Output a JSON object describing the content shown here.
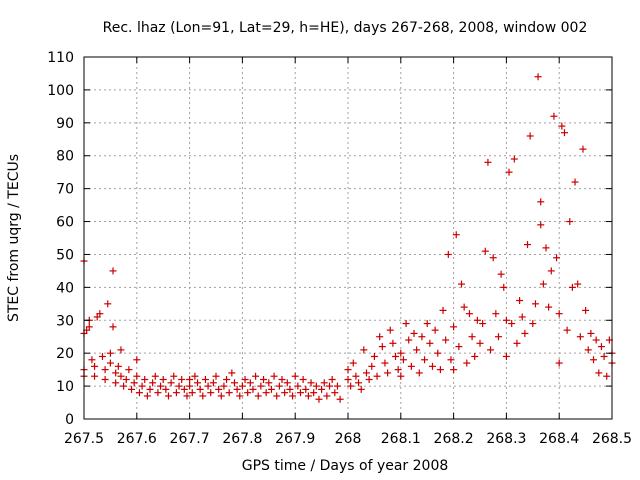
{
  "chart_data": {
    "type": "scatter",
    "title": "Rec. lhaz (Lon=91, Lat=29, h=HE), days 267-268, 2008, window 002",
    "xlabel": "GPS time / Days of year 2008",
    "ylabel": "STEC from uqrg / TECUs",
    "xlim": [
      267.5,
      268.5
    ],
    "ylim": [
      0,
      110
    ],
    "xticks": [
      267.5,
      267.6,
      267.7,
      267.8,
      267.9,
      268.0,
      268.1,
      268.2,
      268.3,
      268.4,
      268.5
    ],
    "xtick_labels": [
      "267.5",
      "267.6",
      "267.7",
      "267.8",
      "267.9",
      "268",
      "268.1",
      "268.2",
      "268.3",
      "268.4",
      "268.5"
    ],
    "yticks": [
      0,
      10,
      20,
      30,
      40,
      50,
      60,
      70,
      80,
      90,
      100,
      110
    ],
    "ytick_labels": [
      "0",
      "10",
      "20",
      "30",
      "40",
      "50",
      "60",
      "70",
      "80",
      "90",
      "100",
      "110"
    ],
    "grid": true,
    "marker": "+",
    "color": "#cc0000",
    "series": [
      {
        "points": [
          [
            267.5,
            48
          ],
          [
            267.5,
            26
          ],
          [
            267.5,
            15
          ],
          [
            267.5,
            13
          ],
          [
            267.505,
            27
          ],
          [
            267.51,
            30
          ],
          [
            267.51,
            28
          ],
          [
            267.515,
            18
          ],
          [
            267.52,
            16
          ],
          [
            267.52,
            13
          ],
          [
            267.525,
            31
          ],
          [
            267.53,
            32
          ],
          [
            267.535,
            19
          ],
          [
            267.54,
            15
          ],
          [
            267.54,
            12
          ],
          [
            267.545,
            35
          ],
          [
            267.55,
            20
          ],
          [
            267.55,
            17
          ],
          [
            267.555,
            45
          ],
          [
            267.555,
            28
          ],
          [
            267.56,
            14
          ],
          [
            267.56,
            11
          ],
          [
            267.565,
            16
          ],
          [
            267.57,
            21
          ],
          [
            267.57,
            13
          ],
          [
            267.575,
            10
          ],
          [
            267.58,
            12
          ],
          [
            267.585,
            15
          ],
          [
            267.59,
            9
          ],
          [
            267.595,
            11
          ],
          [
            267.6,
            18
          ],
          [
            267.6,
            13
          ],
          [
            267.605,
            8
          ],
          [
            267.61,
            10
          ],
          [
            267.615,
            12
          ],
          [
            267.62,
            7
          ],
          [
            267.625,
            9
          ],
          [
            267.63,
            11
          ],
          [
            267.635,
            13
          ],
          [
            267.64,
            8
          ],
          [
            267.645,
            10
          ],
          [
            267.65,
            12
          ],
          [
            267.655,
            9
          ],
          [
            267.66,
            7
          ],
          [
            267.665,
            11
          ],
          [
            267.67,
            13
          ],
          [
            267.675,
            8
          ],
          [
            267.68,
            10
          ],
          [
            267.685,
            12
          ],
          [
            267.69,
            9
          ],
          [
            267.695,
            7
          ],
          [
            267.7,
            12
          ],
          [
            267.7,
            10
          ],
          [
            267.705,
            8
          ],
          [
            267.71,
            13
          ],
          [
            267.715,
            11
          ],
          [
            267.72,
            9
          ],
          [
            267.725,
            7
          ],
          [
            267.73,
            12
          ],
          [
            267.735,
            10
          ],
          [
            267.74,
            8
          ],
          [
            267.745,
            11
          ],
          [
            267.75,
            13
          ],
          [
            267.755,
            9
          ],
          [
            267.76,
            7
          ],
          [
            267.765,
            10
          ],
          [
            267.77,
            12
          ],
          [
            267.775,
            8
          ],
          [
            267.78,
            14
          ],
          [
            267.785,
            11
          ],
          [
            267.79,
            9
          ],
          [
            267.795,
            7
          ],
          [
            267.8,
            10
          ],
          [
            267.805,
            12
          ],
          [
            267.81,
            8
          ],
          [
            267.815,
            11
          ],
          [
            267.82,
            9
          ],
          [
            267.825,
            13
          ],
          [
            267.83,
            7
          ],
          [
            267.835,
            10
          ],
          [
            267.84,
            12
          ],
          [
            267.845,
            8
          ],
          [
            267.85,
            11
          ],
          [
            267.855,
            9
          ],
          [
            267.86,
            13
          ],
          [
            267.865,
            7
          ],
          [
            267.87,
            10
          ],
          [
            267.875,
            12
          ],
          [
            267.88,
            8
          ],
          [
            267.885,
            11
          ],
          [
            267.89,
            9
          ],
          [
            267.895,
            7
          ],
          [
            267.9,
            13
          ],
          [
            267.905,
            10
          ],
          [
            267.91,
            8
          ],
          [
            267.915,
            12
          ],
          [
            267.92,
            9
          ],
          [
            267.925,
            7
          ],
          [
            267.93,
            11
          ],
          [
            267.935,
            8
          ],
          [
            267.94,
            10
          ],
          [
            267.945,
            6
          ],
          [
            267.95,
            9
          ],
          [
            267.955,
            11
          ],
          [
            267.96,
            7
          ],
          [
            267.965,
            10
          ],
          [
            267.97,
            12
          ],
          [
            267.975,
            8
          ],
          [
            267.98,
            10
          ],
          [
            267.985,
            6
          ],
          [
            268.0,
            15
          ],
          [
            268.0,
            12
          ],
          [
            268.005,
            10
          ],
          [
            268.01,
            17
          ],
          [
            268.015,
            13
          ],
          [
            268.02,
            11
          ],
          [
            268.025,
            9
          ],
          [
            268.03,
            21
          ],
          [
            268.035,
            14
          ],
          [
            268.04,
            12
          ],
          [
            268.045,
            16
          ],
          [
            268.05,
            19
          ],
          [
            268.055,
            13
          ],
          [
            268.06,
            25
          ],
          [
            268.065,
            22
          ],
          [
            268.07,
            17
          ],
          [
            268.075,
            14
          ],
          [
            268.08,
            27
          ],
          [
            268.085,
            23
          ],
          [
            268.09,
            19
          ],
          [
            268.095,
            15
          ],
          [
            268.1,
            20
          ],
          [
            268.1,
            13
          ],
          [
            268.105,
            18
          ],
          [
            268.11,
            29
          ],
          [
            268.115,
            24
          ],
          [
            268.12,
            16
          ],
          [
            268.125,
            26
          ],
          [
            268.13,
            21
          ],
          [
            268.135,
            14
          ],
          [
            268.14,
            25
          ],
          [
            268.145,
            18
          ],
          [
            268.15,
            29
          ],
          [
            268.155,
            23
          ],
          [
            268.16,
            16
          ],
          [
            268.165,
            27
          ],
          [
            268.17,
            20
          ],
          [
            268.175,
            15
          ],
          [
            268.18,
            33
          ],
          [
            268.185,
            24
          ],
          [
            268.19,
            50
          ],
          [
            268.195,
            18
          ],
          [
            268.2,
            28
          ],
          [
            268.2,
            15
          ],
          [
            268.205,
            56
          ],
          [
            268.21,
            22
          ],
          [
            268.215,
            41
          ],
          [
            268.22,
            34
          ],
          [
            268.225,
            17
          ],
          [
            268.23,
            32
          ],
          [
            268.235,
            25
          ],
          [
            268.24,
            19
          ],
          [
            268.245,
            30
          ],
          [
            268.25,
            23
          ],
          [
            268.255,
            29
          ],
          [
            268.26,
            51
          ],
          [
            268.265,
            78
          ],
          [
            268.27,
            21
          ],
          [
            268.275,
            49
          ],
          [
            268.28,
            32
          ],
          [
            268.285,
            25
          ],
          [
            268.29,
            44
          ],
          [
            268.295,
            40
          ],
          [
            268.3,
            30
          ],
          [
            268.3,
            19
          ],
          [
            268.305,
            75
          ],
          [
            268.31,
            29
          ],
          [
            268.315,
            79
          ],
          [
            268.32,
            23
          ],
          [
            268.325,
            36
          ],
          [
            268.33,
            31
          ],
          [
            268.335,
            26
          ],
          [
            268.34,
            53
          ],
          [
            268.345,
            86
          ],
          [
            268.35,
            29
          ],
          [
            268.355,
            35
          ],
          [
            268.36,
            104
          ],
          [
            268.365,
            66
          ],
          [
            268.365,
            59
          ],
          [
            268.37,
            41
          ],
          [
            268.375,
            52
          ],
          [
            268.38,
            34
          ],
          [
            268.385,
            45
          ],
          [
            268.39,
            92
          ],
          [
            268.395,
            49
          ],
          [
            268.4,
            32
          ],
          [
            268.4,
            17
          ],
          [
            268.405,
            89
          ],
          [
            268.41,
            87
          ],
          [
            268.415,
            27
          ],
          [
            268.42,
            60
          ],
          [
            268.425,
            40
          ],
          [
            268.43,
            72
          ],
          [
            268.435,
            41
          ],
          [
            268.44,
            25
          ],
          [
            268.445,
            82
          ],
          [
            268.45,
            33
          ],
          [
            268.455,
            21
          ],
          [
            268.46,
            26
          ],
          [
            268.465,
            18
          ],
          [
            268.47,
            24
          ],
          [
            268.475,
            14
          ],
          [
            268.48,
            22
          ],
          [
            268.485,
            19
          ],
          [
            268.49,
            13
          ],
          [
            268.495,
            24
          ],
          [
            268.5,
            20
          ],
          [
            268.5,
            17
          ]
        ]
      }
    ]
  }
}
